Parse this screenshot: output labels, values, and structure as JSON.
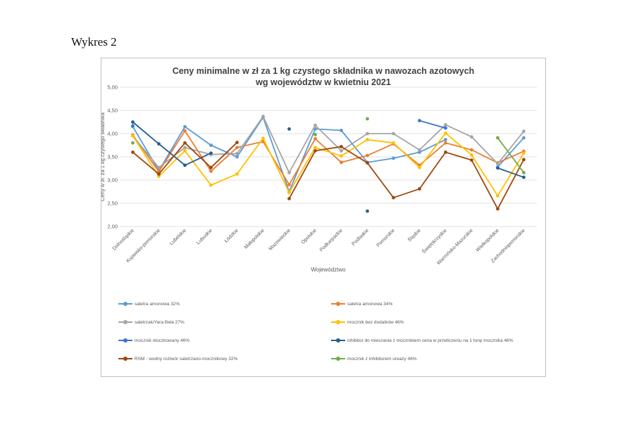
{
  "page": {
    "caption": "Wykres 2"
  },
  "chart_data": {
    "type": "line",
    "title_line1": "Ceny minimalne w zł za 1 kg czystego składnika w nawozach azotowych",
    "title_line2": "wg województw w kwietniu 2021",
    "xlabel": "Województwo",
    "ylabel": "Ceny w zł. za 1 kg czystego składnika",
    "ylim": [
      2.0,
      5.0
    ],
    "yticks": [
      "2,00",
      "2,50",
      "3,00",
      "3,50",
      "4,00",
      "4,50",
      "5,00"
    ],
    "grid": true,
    "legend_position": "bottom",
    "categories": [
      "Dolnośląskie",
      "Kujawsko-pomorskie",
      "Lubelskie",
      "Lubuskie",
      "Łódzkie",
      "Małopolskie",
      "Mazowieckie",
      "Opolskie",
      "Podkarpackie",
      "Podlaskie",
      "Pomorskie",
      "Śląskie",
      "Świętokrzyskie",
      "Warmińsko-Mazurskie",
      "Wielkopolskie",
      "Zachodniopomorskie"
    ],
    "series": [
      {
        "name": "saletra amonowa 32%",
        "color": "#5b9bd5",
        "values": [
          4.15,
          3.2,
          4.15,
          3.75,
          3.5,
          4.35,
          2.75,
          4.1,
          4.07,
          3.38,
          3.47,
          3.6,
          3.87,
          null,
          3.28,
          3.91
        ]
      },
      {
        "name": "saletra amonowa 34%",
        "color": "#ed7d31",
        "values": [
          3.97,
          3.18,
          4.06,
          3.19,
          3.7,
          3.83,
          2.9,
          3.89,
          3.38,
          3.53,
          3.78,
          3.32,
          3.8,
          3.65,
          3.37,
          3.62
        ]
      },
      {
        "name": "saletrzak/Yara Bela 27%",
        "color": "#a5a5a5",
        "values": [
          3.95,
          3.27,
          3.7,
          3.55,
          3.57,
          4.37,
          3.16,
          4.18,
          3.63,
          4.0,
          4.0,
          3.65,
          4.19,
          3.93,
          3.35,
          4.05
        ]
      },
      {
        "name": "mocznik bez dodatków 46%",
        "color": "#ffc000",
        "values": [
          3.95,
          3.08,
          3.63,
          2.89,
          3.13,
          3.9,
          2.73,
          3.7,
          3.52,
          3.87,
          3.8,
          3.27,
          4.01,
          3.54,
          2.66,
          3.58
        ]
      },
      {
        "name": "mocznik otoczkowany 46%",
        "color": "#4472c4",
        "values": [
          4.17,
          null,
          null,
          null,
          null,
          null,
          null,
          null,
          null,
          null,
          null,
          4.28,
          4.12,
          null,
          null,
          null
        ]
      },
      {
        "name": "inhibitor do mieszania z mocznikiem cena  w przeliczeniu na 1 tonę mocznika  46%",
        "color": "#255e91",
        "values": [
          4.25,
          3.78,
          3.32,
          3.58,
          null,
          null,
          4.1,
          null,
          null,
          2.33,
          null,
          null,
          null,
          null,
          3.26,
          3.06
        ]
      },
      {
        "name": "RSM - wodny roztwór saletrzano-mocznikowy 32%",
        "color": "#9e480e",
        "values": [
          3.6,
          3.13,
          3.8,
          3.27,
          3.81,
          null,
          2.6,
          3.63,
          3.72,
          3.37,
          2.62,
          2.81,
          3.6,
          3.43,
          2.38,
          3.44
        ]
      },
      {
        "name": "mocznik z inhibitorem ureazy 46%",
        "color": "#70ad47",
        "values": [
          3.8,
          null,
          null,
          null,
          null,
          null,
          null,
          3.98,
          null,
          4.32,
          null,
          null,
          null,
          null,
          3.91,
          3.16
        ]
      }
    ]
  }
}
